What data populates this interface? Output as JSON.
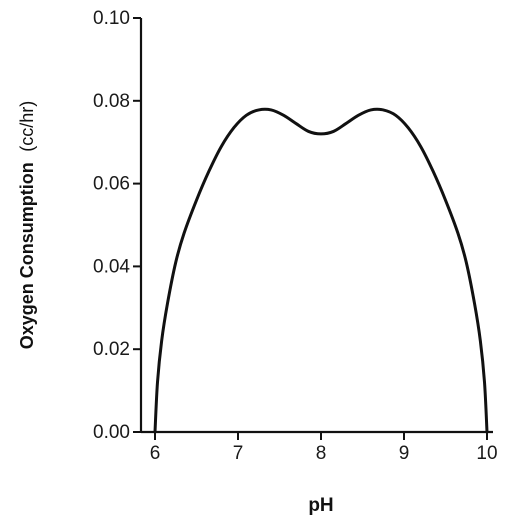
{
  "chart_data": {
    "type": "line",
    "xlabel": "pH",
    "ylabel": "Oxygen Consumption",
    "ylabel_unit": "(cc/hr)",
    "xlim": [
      6,
      10
    ],
    "ylim": [
      0,
      0.1
    ],
    "x_ticks": [
      "6",
      "7",
      "8",
      "9",
      "10"
    ],
    "y_ticks": [
      "0.00",
      "0.02",
      "0.04",
      "0.06",
      "0.08",
      "0.10"
    ],
    "grid": false,
    "series": [
      {
        "x": [
          6.0,
          6.03,
          6.08,
          6.15,
          6.25,
          6.35,
          6.5,
          6.65,
          6.8,
          6.95,
          7.1,
          7.25,
          7.4,
          7.55,
          7.7,
          7.85,
          8.0,
          8.15,
          8.3,
          8.45,
          8.6,
          8.75,
          8.9,
          9.05,
          9.2,
          9.35,
          9.5,
          9.65,
          9.75,
          9.85,
          9.92,
          9.97,
          10.0
        ],
        "y": [
          0.0,
          0.012,
          0.022,
          0.031,
          0.041,
          0.048,
          0.056,
          0.063,
          0.069,
          0.0735,
          0.0765,
          0.0778,
          0.0778,
          0.0765,
          0.0745,
          0.0726,
          0.072,
          0.0726,
          0.0745,
          0.0765,
          0.0778,
          0.0778,
          0.0765,
          0.0735,
          0.069,
          0.063,
          0.056,
          0.048,
          0.041,
          0.031,
          0.022,
          0.012,
          0.0
        ]
      }
    ]
  }
}
